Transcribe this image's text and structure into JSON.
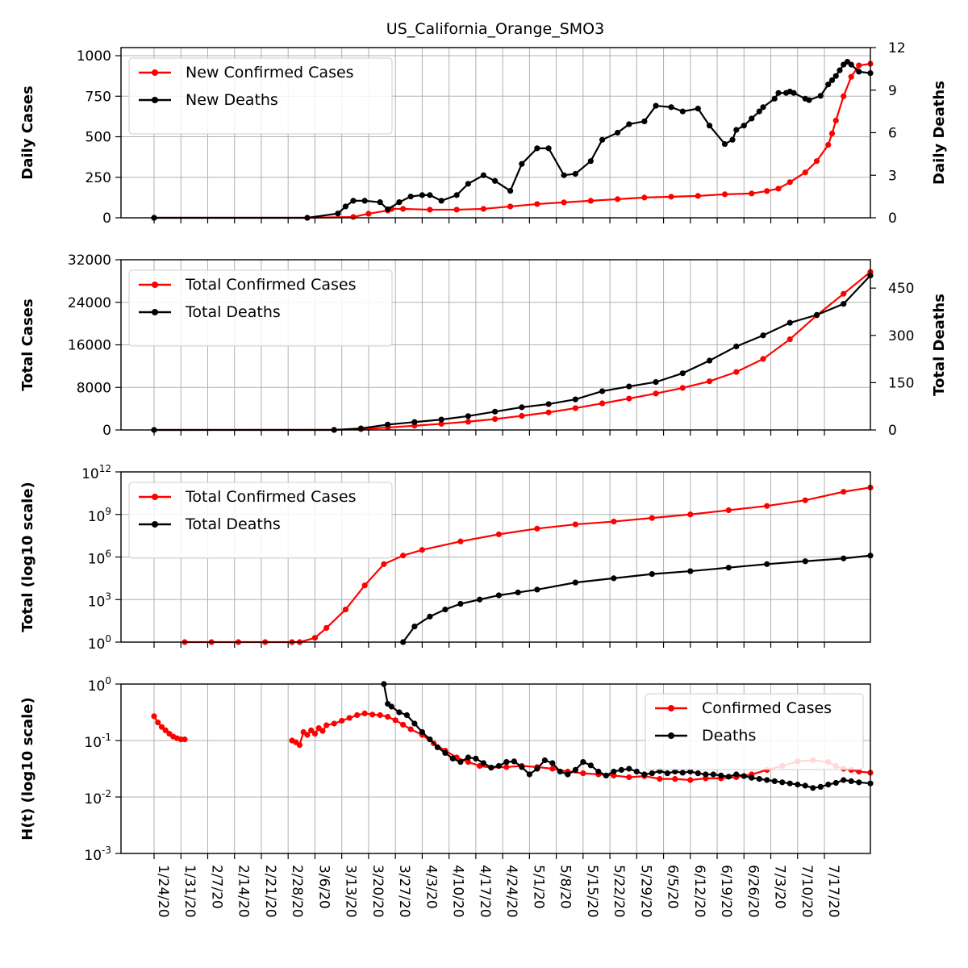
{
  "title": "US_California_Orange_SMO3",
  "x_tick_labels": [
    "1/24/20",
    "1/31/20",
    "2/7/20",
    "2/14/20",
    "2/21/20",
    "2/28/20",
    "3/6/20",
    "3/13/20",
    "3/20/20",
    "3/27/20",
    "4/3/20",
    "4/10/20",
    "4/17/20",
    "4/24/20",
    "5/1/20",
    "5/8/20",
    "5/15/20",
    "5/22/20",
    "5/29/20",
    "6/5/20",
    "6/12/20",
    "6/19/20",
    "6/26/20",
    "7/3/20",
    "7/10/20",
    "7/17/20"
  ],
  "colors": {
    "cases": "#ff0000",
    "deaths": "#000000",
    "grid": "#b0b0b0"
  },
  "chart_data": [
    {
      "type": "line",
      "ylabel": "Daily Cases",
      "y2label": "Daily Deaths",
      "ylim": [
        0,
        1050
      ],
      "y2lim": [
        0,
        12
      ],
      "yticks": [
        "0",
        "250",
        "500",
        "750",
        "1000"
      ],
      "y2ticks": [
        "0",
        "3",
        "6",
        "9",
        "12"
      ],
      "grid": true,
      "legend_position": "top-left",
      "series": [
        {
          "name": "New Confirmed Cases",
          "axis": "left",
          "x": [
            0,
            40,
            52,
            56,
            61,
            62,
            65,
            72,
            79,
            86,
            93,
            100,
            107,
            114,
            121,
            128,
            135,
            142,
            149,
            156,
            160,
            163,
            166,
            170,
            173,
            176,
            177,
            178,
            180,
            182,
            184,
            187
          ],
          "y": [
            0,
            0,
            5,
            25,
            45,
            55,
            55,
            50,
            50,
            55,
            70,
            85,
            95,
            105,
            115,
            125,
            130,
            135,
            145,
            150,
            165,
            180,
            220,
            280,
            350,
            450,
            520,
            600,
            750,
            870,
            940,
            950
          ]
        },
        {
          "name": "New Deaths",
          "axis": "right",
          "x": [
            0,
            40,
            48,
            50,
            52,
            55,
            59,
            61,
            64,
            67,
            70,
            72,
            75,
            79,
            82,
            86,
            89,
            93,
            96,
            100,
            103,
            107,
            110,
            114,
            117,
            121,
            124,
            128,
            131,
            135,
            138,
            142,
            145,
            149,
            151,
            152,
            154,
            156,
            158,
            159,
            162,
            163,
            165,
            166,
            167,
            170,
            171,
            174,
            176,
            177,
            178,
            179,
            180,
            181,
            182,
            184,
            187
          ],
          "y": [
            0,
            0,
            0.3,
            0.8,
            1.2,
            1.2,
            1.1,
            0.6,
            1.1,
            1.5,
            1.6,
            1.6,
            1.2,
            1.6,
            2.4,
            3.0,
            2.6,
            1.9,
            3.8,
            4.9,
            4.9,
            3.0,
            3.1,
            4.0,
            5.5,
            6.0,
            6.6,
            6.8,
            7.9,
            7.8,
            7.5,
            7.7,
            6.5,
            5.2,
            5.5,
            6.2,
            6.5,
            7.0,
            7.5,
            7.8,
            8.4,
            8.8,
            8.8,
            8.9,
            8.8,
            8.4,
            8.3,
            8.6,
            9.4,
            9.7,
            10.0,
            10.4,
            10.8,
            11.0,
            10.8,
            10.3,
            10.2
          ]
        }
      ]
    },
    {
      "type": "line",
      "ylabel": "Total Cases",
      "y2label": "Total Deaths",
      "ylim": [
        0,
        32000
      ],
      "y2lim": [
        0,
        540
      ],
      "yticks": [
        "0",
        "8000",
        "16000",
        "24000",
        "32000"
      ],
      "y2ticks": [
        "0",
        "150",
        "300",
        "450"
      ],
      "grid": true,
      "legend_position": "top-left",
      "series": [
        {
          "name": "Total Confirmed Cases",
          "axis": "left",
          "x": [
            0,
            47,
            54,
            61,
            68,
            75,
            82,
            89,
            96,
            103,
            110,
            117,
            124,
            131,
            138,
            145,
            152,
            159,
            166,
            173,
            180,
            187
          ],
          "y": [
            0,
            30,
            150,
            450,
            800,
            1150,
            1550,
            2050,
            2650,
            3300,
            4100,
            5000,
            5900,
            6850,
            7900,
            9150,
            10900,
            13350,
            17050,
            21550,
            25600,
            29700
          ]
        },
        {
          "name": "Total Deaths",
          "axis": "right",
          "x": [
            0,
            47,
            54,
            61,
            68,
            75,
            82,
            89,
            96,
            103,
            110,
            117,
            124,
            131,
            138,
            145,
            152,
            159,
            166,
            173,
            180,
            187
          ],
          "y": [
            0,
            0,
            5,
            17,
            25,
            33,
            44,
            58,
            72,
            82,
            97,
            123,
            138,
            152,
            180,
            220,
            265,
            300,
            340,
            365,
            400,
            490
          ]
        }
      ]
    },
    {
      "type": "line",
      "ylabel": "Total (log10 scale)",
      "log_scale": true,
      "ylim_log10": [
        0,
        12
      ],
      "yticks": [
        "10^0",
        "10^3",
        "10^6",
        "10^9",
        "10^12"
      ],
      "grid": true,
      "legend_position": "top-left",
      "series": [
        {
          "name": "Total Confirmed Cases",
          "x": [
            0,
            8,
            15,
            22,
            29,
            36,
            38,
            42,
            45,
            50,
            55,
            60,
            65,
            70,
            80,
            90,
            100,
            110,
            120,
            130,
            140,
            150,
            160,
            170,
            180,
            187
          ],
          "log10_y": [
            null,
            0,
            0,
            0,
            0,
            0,
            0,
            0.3,
            1.0,
            2.3,
            4.0,
            5.5,
            6.1,
            6.5,
            7.1,
            7.6,
            8.0,
            8.3,
            8.5,
            8.75,
            9.0,
            9.3,
            9.6,
            10.0,
            10.6,
            10.9
          ]
        },
        {
          "name": "Total Deaths",
          "x": [
            65,
            68,
            72,
            76,
            80,
            85,
            90,
            95,
            100,
            110,
            120,
            130,
            140,
            150,
            160,
            170,
            180,
            187
          ],
          "log10_y": [
            0,
            1.1,
            1.8,
            2.3,
            2.7,
            3.0,
            3.3,
            3.5,
            3.7,
            4.2,
            4.5,
            4.8,
            5.0,
            5.25,
            5.5,
            5.7,
            5.9,
            6.1
          ]
        }
      ]
    },
    {
      "type": "line",
      "ylabel": "H(t) (log10 scale)",
      "log_scale": true,
      "ylim_log10": [
        -3,
        0
      ],
      "yticks": [
        "10^-3",
        "10^-2",
        "10^-1",
        "10^0"
      ],
      "grid": true,
      "legend_position": "top-right",
      "series": [
        {
          "name": "Confirmed Cases",
          "x": [
            0,
            1,
            2,
            3,
            4,
            5,
            6,
            7,
            8
          ],
          "log10_y": [
            -0.57,
            -0.68,
            -0.76,
            -0.82,
            -0.88,
            -0.93,
            -0.96,
            -0.98,
            -0.98
          ]
        },
        {
          "x": [
            36,
            37,
            38,
            39,
            40,
            41,
            42,
            43,
            44,
            45,
            47,
            49,
            51,
            53,
            55,
            57,
            59,
            61,
            63,
            65,
            67,
            70,
            73,
            76,
            79,
            82,
            85,
            88,
            92,
            96,
            100,
            104,
            108,
            112,
            116,
            120,
            124,
            128,
            132,
            136,
            140,
            144,
            148,
            152,
            156,
            160,
            164,
            168,
            172,
            176,
            178,
            180,
            182,
            184,
            187
          ],
          "log10_y": [
            -1.0,
            -1.03,
            -1.08,
            -0.85,
            -0.9,
            -0.82,
            -0.88,
            -0.78,
            -0.83,
            -0.73,
            -0.7,
            -0.65,
            -0.6,
            -0.55,
            -0.52,
            -0.54,
            -0.55,
            -0.58,
            -0.64,
            -0.72,
            -0.8,
            -0.9,
            -1.05,
            -1.18,
            -1.3,
            -1.38,
            -1.45,
            -1.48,
            -1.47,
            -1.45,
            -1.47,
            -1.5,
            -1.55,
            -1.58,
            -1.6,
            -1.62,
            -1.65,
            -1.63,
            -1.68,
            -1.68,
            -1.7,
            -1.67,
            -1.67,
            -1.65,
            -1.6,
            -1.52,
            -1.45,
            -1.37,
            -1.35,
            -1.38,
            -1.45,
            -1.5,
            -1.52,
            -1.55,
            -1.57
          ]
        },
        {
          "name": "Deaths",
          "x": [
            60,
            61,
            62,
            64,
            66,
            68,
            70,
            72,
            74,
            76,
            78,
            80,
            82,
            84,
            86,
            88,
            90,
            92,
            94,
            96,
            98,
            100,
            102,
            104,
            106,
            108,
            110,
            112,
            114,
            116,
            118,
            120,
            122,
            124,
            126,
            128,
            130,
            132,
            134,
            136,
            138,
            140,
            142,
            144,
            146,
            148,
            150,
            152,
            154,
            156,
            158,
            160,
            162,
            164,
            166,
            168,
            170,
            172,
            174,
            176,
            178,
            180,
            182,
            184,
            187
          ],
          "log10_y": [
            0,
            -0.35,
            -0.4,
            -0.5,
            -0.55,
            -0.7,
            -0.85,
            -0.98,
            -1.12,
            -1.22,
            -1.32,
            -1.38,
            -1.3,
            -1.32,
            -1.4,
            -1.48,
            -1.45,
            -1.38,
            -1.37,
            -1.47,
            -1.6,
            -1.5,
            -1.35,
            -1.4,
            -1.55,
            -1.6,
            -1.52,
            -1.38,
            -1.44,
            -1.55,
            -1.62,
            -1.55,
            -1.52,
            -1.5,
            -1.55,
            -1.6,
            -1.58,
            -1.54,
            -1.58,
            -1.55,
            -1.57,
            -1.55,
            -1.58,
            -1.6,
            -1.6,
            -1.62,
            -1.64,
            -1.6,
            -1.63,
            -1.66,
            -1.68,
            -1.7,
            -1.72,
            -1.74,
            -1.76,
            -1.78,
            -1.8,
            -1.84,
            -1.82,
            -1.78,
            -1.75,
            -1.7,
            -1.72,
            -1.74,
            -1.76
          ]
        }
      ]
    }
  ]
}
